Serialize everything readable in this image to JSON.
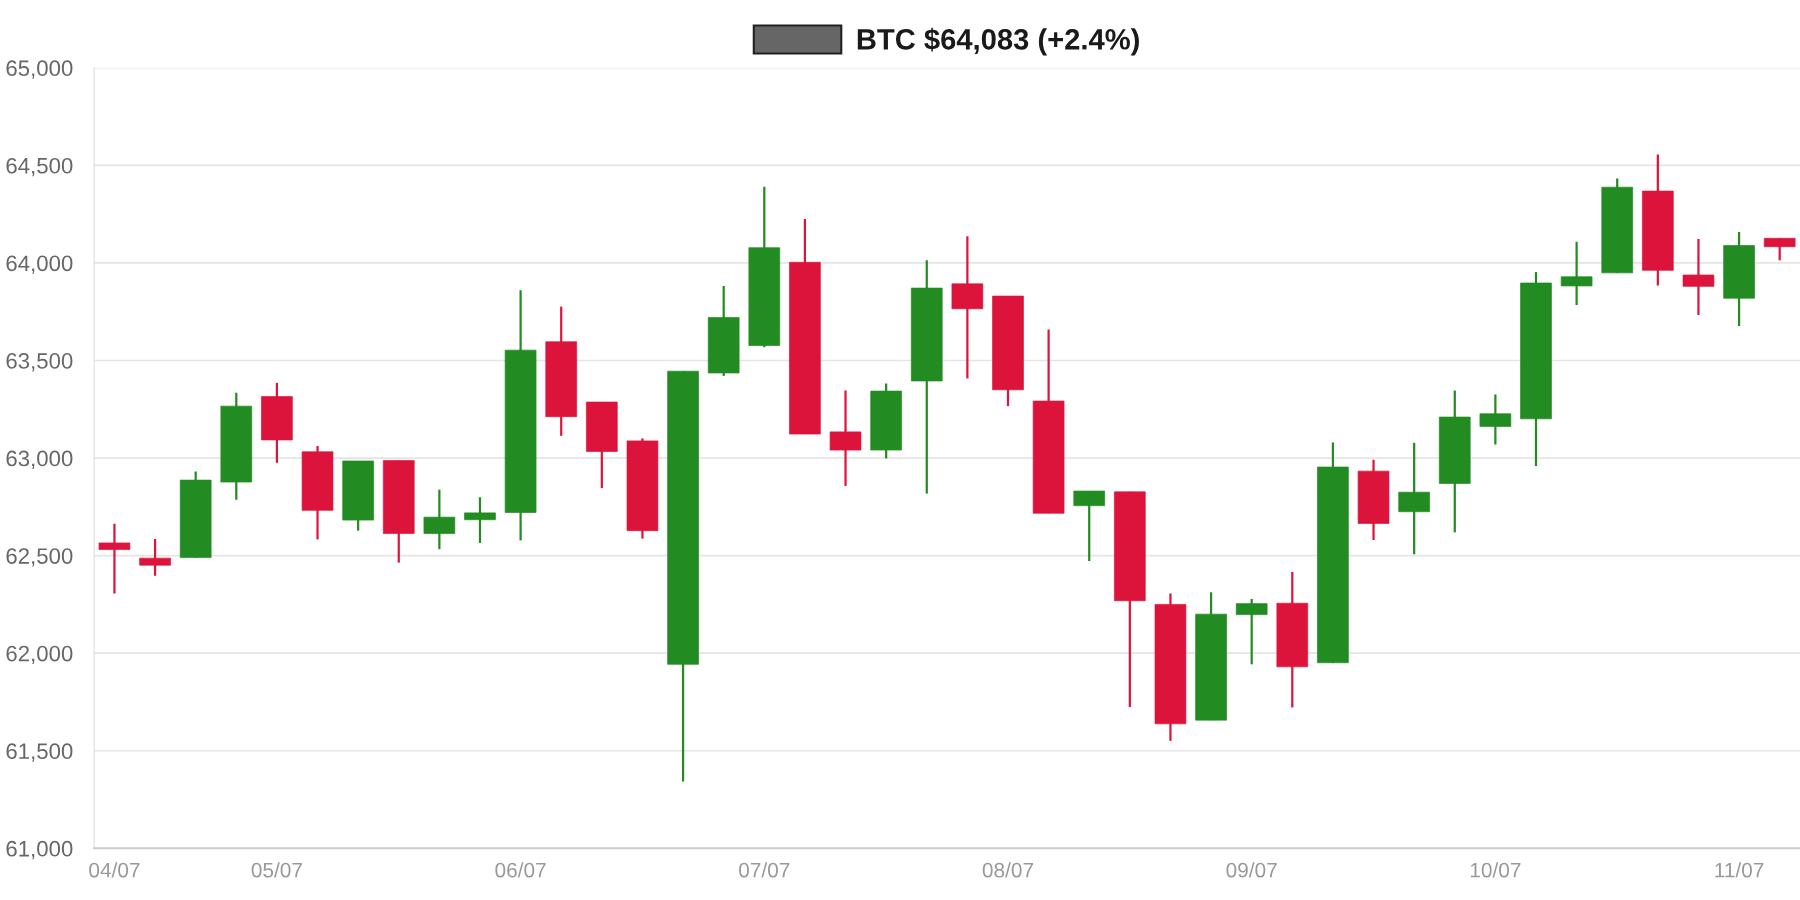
{
  "chart_data": {
    "type": "candlestick",
    "legend": "top",
    "grid": "y",
    "categories": [
      "04/07",
      null,
      null,
      null,
      "05/07",
      null,
      null,
      null,
      null,
      null,
      "06/07",
      null,
      null,
      null,
      null,
      null,
      "07/07",
      null,
      null,
      null,
      null,
      null,
      "08/07",
      null,
      null,
      null,
      null,
      null,
      "09/07",
      null,
      null,
      null,
      null,
      null,
      "10/07",
      null,
      null,
      null,
      null,
      null,
      "11/07",
      null
    ],
    "ylim": [
      61000,
      65000
    ],
    "yticks": [
      {
        "value": 61000,
        "label": "61,000"
      },
      {
        "value": 61500,
        "label": "61,500"
      },
      {
        "value": 62000,
        "label": "62,000"
      },
      {
        "value": 62500,
        "label": "62,500"
      },
      {
        "value": 63000,
        "label": "63,000"
      },
      {
        "value": 63500,
        "label": "63,500"
      },
      {
        "value": 64000,
        "label": "64,000"
      },
      {
        "value": 64500,
        "label": "64,500"
      },
      {
        "value": 65000,
        "label": "65,000"
      }
    ],
    "series": [
      {
        "name": "BTC $64,083 (+2.4%)",
        "color": "#666666",
        "colors": [
          "#dc143c",
          "#dc143c",
          "#228b22",
          "#228b22",
          "#dc143c",
          "#dc143c",
          "#228b22",
          "#dc143c",
          "#228b22",
          "#228b22",
          "#228b22",
          "#dc143c",
          "#dc143c",
          "#dc143c",
          "#228b22",
          "#228b22",
          "#228b22",
          "#dc143c",
          "#dc143c",
          "#228b22",
          "#228b22",
          "#dc143c",
          "#dc143c",
          "#dc143c",
          "#228b22",
          "#dc143c",
          "#dc143c",
          "#228b22",
          "#228b22",
          "#dc143c",
          "#228b22",
          "#dc143c",
          "#228b22",
          "#228b22",
          "#228b22",
          "#228b22",
          "#228b22",
          "#228b22",
          "#dc143c",
          "#dc143c",
          "#228b22",
          "#dc143c"
        ],
        "ohlc": [
          [
            62565,
            62663,
            62306,
            62531
          ],
          [
            62487,
            62585,
            62397,
            62451
          ],
          [
            62490,
            62931,
            62490,
            62887
          ],
          [
            62877,
            63335,
            62786,
            63266
          ],
          [
            63315,
            63385,
            62976,
            63093
          ],
          [
            63032,
            63062,
            62583,
            62732
          ],
          [
            62682,
            62985,
            62628,
            62985
          ],
          [
            62987,
            62987,
            62464,
            62613
          ],
          [
            62613,
            62838,
            62533,
            62697
          ],
          [
            62684,
            62799,
            62565,
            62719
          ],
          [
            62721,
            63860,
            62578,
            63553
          ],
          [
            63596,
            63776,
            63114,
            63212
          ],
          [
            63287,
            63287,
            62846,
            63034
          ],
          [
            63088,
            63101,
            62587,
            62628
          ],
          [
            61943,
            63445,
            61342,
            63445
          ],
          [
            63436,
            63882,
            63421,
            63720
          ],
          [
            63577,
            64390,
            63568,
            64078
          ],
          [
            64003,
            64225,
            63123,
            63123
          ],
          [
            63134,
            63346,
            62857,
            63041
          ],
          [
            63041,
            63382,
            62998,
            63343
          ],
          [
            63395,
            64014,
            62818,
            63871
          ],
          [
            63893,
            64137,
            63408,
            63765
          ],
          [
            63830,
            63830,
            63266,
            63350
          ],
          [
            63292,
            63659,
            62717,
            62717
          ],
          [
            62756,
            62831,
            62472,
            62831
          ],
          [
            62827,
            62827,
            61724,
            62269
          ],
          [
            62250,
            62306,
            61551,
            61638
          ],
          [
            61657,
            62312,
            61657,
            62200
          ],
          [
            62198,
            62278,
            61943,
            62254
          ],
          [
            62256,
            62416,
            61722,
            61930
          ],
          [
            61951,
            63080,
            61951,
            62954
          ],
          [
            62933,
            62991,
            62580,
            62665
          ],
          [
            62725,
            63078,
            62507,
            62825
          ],
          [
            62870,
            63346,
            62619,
            63210
          ],
          [
            63162,
            63326,
            63069,
            63227
          ],
          [
            63201,
            63953,
            62959,
            63897
          ],
          [
            63882,
            64109,
            63784,
            63929
          ],
          [
            63949,
            64433,
            63949,
            64388
          ],
          [
            64368,
            64556,
            63884,
            63962
          ],
          [
            63938,
            64122,
            63733,
            63880
          ],
          [
            63819,
            64158,
            63676,
            64089
          ],
          [
            64126,
            64126,
            64014,
            64083
          ]
        ]
      }
    ]
  }
}
